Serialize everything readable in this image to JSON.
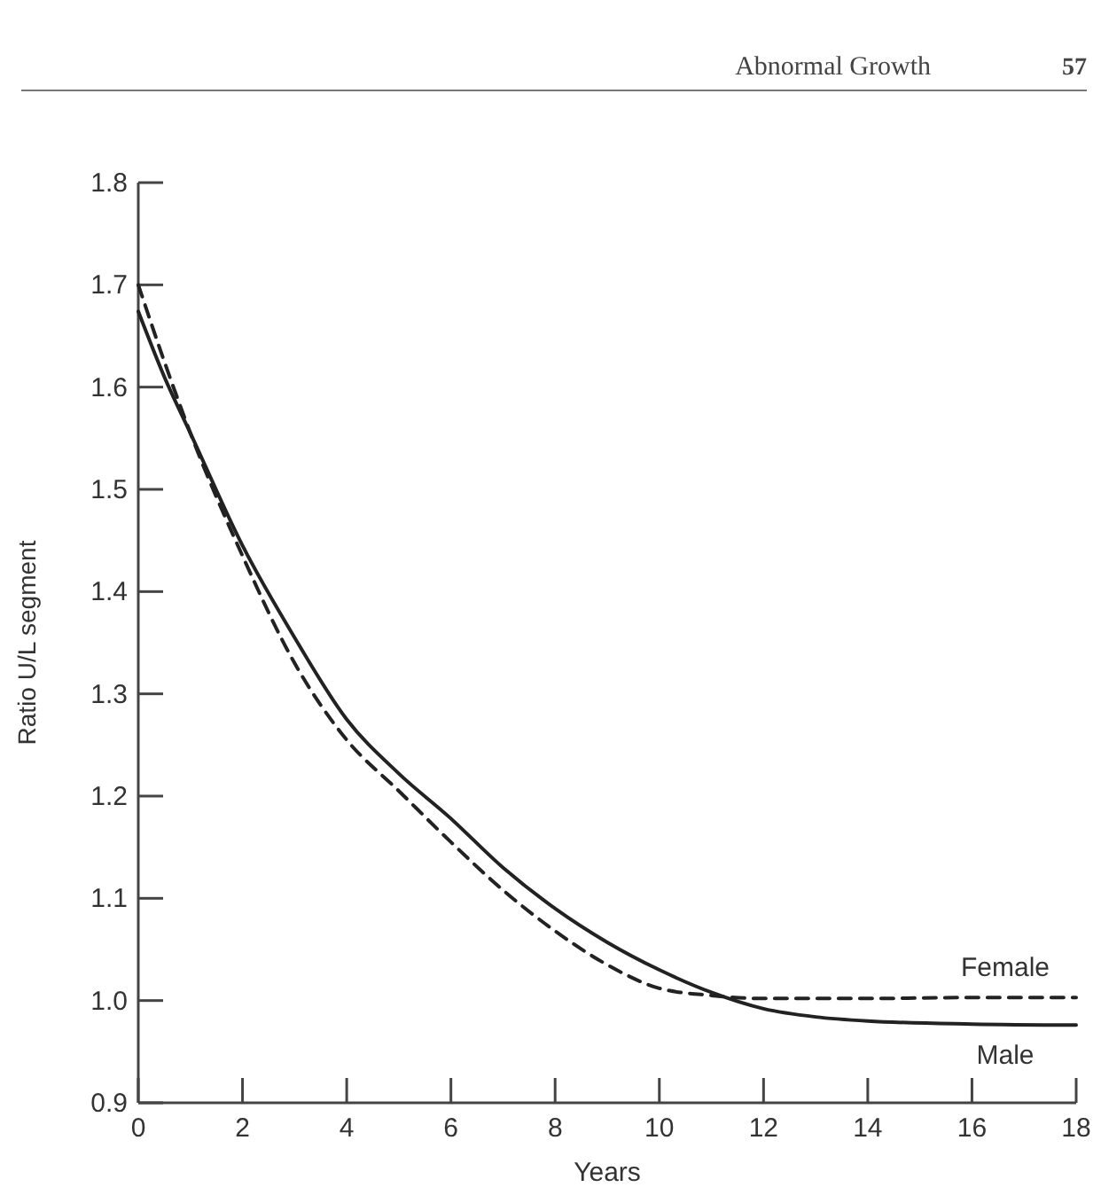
{
  "chart_data": {
    "type": "line",
    "xlabel": "Years",
    "ylabel": "Ratio U/L segment",
    "annotations": [
      "Abnormal Growth",
      "57"
    ],
    "xlim": [
      0,
      18
    ],
    "ylim": [
      0.9,
      1.8
    ],
    "xticks": [
      0,
      2,
      4,
      6,
      8,
      10,
      12,
      14,
      16,
      18
    ],
    "yticks": [
      {
        "value": 0.9,
        "label": "0.9"
      },
      {
        "value": 1.0,
        "label": "1.0"
      },
      {
        "value": 1.1,
        "label": "1.1"
      },
      {
        "value": 1.2,
        "label": "1.2"
      },
      {
        "value": 1.3,
        "label": "1.3"
      },
      {
        "value": 1.4,
        "label": "1.4"
      },
      {
        "value": 1.5,
        "label": "1.5"
      },
      {
        "value": 1.6,
        "label": "1.6"
      },
      {
        "value": 1.7,
        "label": "1.7"
      },
      {
        "value": 1.8,
        "label": "1.8"
      }
    ],
    "grid": false,
    "marker": "none",
    "x": [
      0,
      0.5,
      1,
      2,
      3,
      4,
      5,
      6,
      7,
      8,
      9,
      10,
      11,
      12,
      13,
      14,
      16,
      18
    ],
    "series": [
      {
        "name": "Female",
        "color": "#222222",
        "line_style": "dashed",
        "values": [
          1.7,
          1.625,
          1.555,
          1.435,
          1.33,
          1.255,
          1.205,
          1.155,
          1.108,
          1.068,
          1.035,
          1.012,
          1.005,
          1.002,
          1.002,
          1.002,
          1.003,
          1.003
        ]
      },
      {
        "name": "Male",
        "color": "#222222",
        "line_style": "solid",
        "values": [
          1.674,
          1.61,
          1.555,
          1.445,
          1.355,
          1.275,
          1.222,
          1.178,
          1.13,
          1.09,
          1.057,
          1.03,
          1.008,
          0.992,
          0.984,
          0.98,
          0.977,
          0.976
        ]
      }
    ]
  }
}
